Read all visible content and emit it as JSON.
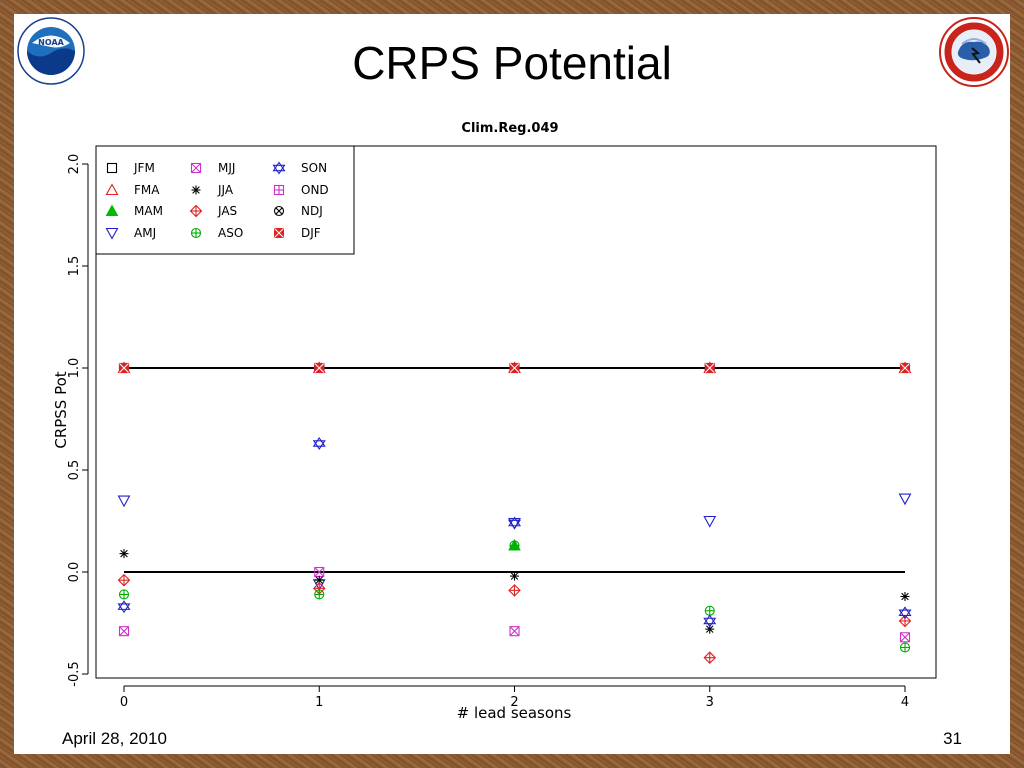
{
  "slide": {
    "title": "CRPS Potential",
    "date": "April 28, 2010",
    "page_number": "31"
  },
  "logos": {
    "noaa": {
      "name": "noaa-logo",
      "inner_text": "NOAA",
      "ring_text": "NATIONAL OCEANIC AND ATMOSPHERIC ADMINISTRATION · U.S. DEPARTMENT OF COMMERCE"
    },
    "nws": {
      "name": "nws-logo",
      "ring_text": "NATIONAL WEATHER SERVICE"
    }
  },
  "chart_data": {
    "type": "scatter",
    "title": "Clim.Reg.049",
    "xlabel": "# lead seasons",
    "ylabel": "CRPSS Pot",
    "xlim": [
      -0.15,
      4.15
    ],
    "ylim": [
      -0.55,
      2.1
    ],
    "x_ticks": [
      "0",
      "1",
      "2",
      "3",
      "4"
    ],
    "y_ticks": [
      "-0.5",
      "0.0",
      "0.5",
      "1.0",
      "1.5",
      "2.0"
    ],
    "reference_lines": [
      0.0,
      1.0
    ],
    "legend_placement": "top-left",
    "series": [
      {
        "name": "JFM",
        "marker": "square",
        "color": "#000000",
        "x": [
          0,
          1,
          2,
          3,
          4
        ],
        "y": [
          1.0,
          1.0,
          1.0,
          1.0,
          1.0
        ]
      },
      {
        "name": "FMA",
        "marker": "triangle-up",
        "color": "#e02020",
        "x": [
          0,
          1,
          2,
          3,
          4
        ],
        "y": [
          1.0,
          1.0,
          1.0,
          1.0,
          1.0
        ]
      },
      {
        "name": "MAM",
        "marker": "triangle-filled",
        "color": "#00bb00",
        "x": [
          2
        ],
        "y": [
          0.13
        ]
      },
      {
        "name": "AMJ",
        "marker": "triangle-down",
        "color": "#2020cc",
        "x": [
          0,
          1,
          2,
          3,
          4
        ],
        "y": [
          0.35,
          -0.06,
          0.24,
          0.25,
          0.36
        ]
      },
      {
        "name": "MJJ",
        "marker": "square-x",
        "color": "#cc33cc",
        "x": [
          0,
          1,
          2,
          4
        ],
        "y": [
          -0.29,
          0.0,
          -0.29,
          -0.32
        ]
      },
      {
        "name": "JJA",
        "marker": "asterisk",
        "color": "#000000",
        "x": [
          0,
          1,
          2,
          3,
          4
        ],
        "y": [
          0.09,
          -0.04,
          -0.02,
          -0.28,
          -0.12
        ]
      },
      {
        "name": "JAS",
        "marker": "diamond-plus",
        "color": "#e02020",
        "x": [
          0,
          1,
          2,
          3,
          4
        ],
        "y": [
          -0.04,
          -0.08,
          -0.09,
          -0.42,
          -0.24
        ]
      },
      {
        "name": "ASO",
        "marker": "circle-plus",
        "color": "#00aa00",
        "x": [
          0,
          1,
          2,
          3,
          4
        ],
        "y": [
          -0.11,
          -0.11,
          0.13,
          -0.19,
          -0.37
        ]
      },
      {
        "name": "SON",
        "marker": "star6",
        "color": "#2020cc",
        "x": [
          0,
          1,
          2,
          3,
          4
        ],
        "y": [
          -0.17,
          0.63,
          0.24,
          -0.24,
          -0.2
        ]
      },
      {
        "name": "OND",
        "marker": "square-plus",
        "color": "#cc33cc",
        "x": [
          0,
          1,
          2,
          3,
          4
        ],
        "y": [
          1.0,
          1.0,
          1.0,
          1.0,
          1.0
        ]
      },
      {
        "name": "NDJ",
        "marker": "circle-x",
        "color": "#000000",
        "x": [
          0,
          1,
          2,
          3,
          4
        ],
        "y": [
          1.0,
          1.0,
          1.0,
          1.0,
          1.0
        ]
      },
      {
        "name": "DJF",
        "marker": "square-filled-x",
        "color": "#dd2222",
        "x": [
          0,
          1,
          2,
          3,
          4
        ],
        "y": [
          1.0,
          1.0,
          1.0,
          1.0,
          1.0
        ]
      }
    ]
  }
}
